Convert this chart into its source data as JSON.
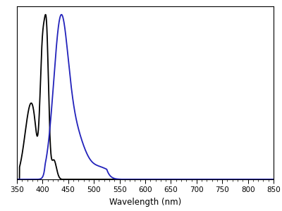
{
  "xlabel": "Wavelength (nm)",
  "xlim": [
    350,
    850
  ],
  "ylim": [
    0,
    1.05
  ],
  "xticks": [
    350,
    400,
    450,
    500,
    550,
    600,
    650,
    700,
    750,
    800,
    850
  ],
  "background_color": "#ffffff",
  "absorption_color": "#000000",
  "emission_color": "#2222bb",
  "line_width": 1.3,
  "fig_width": 4.0,
  "fig_height": 3.0,
  "dpi": 100
}
